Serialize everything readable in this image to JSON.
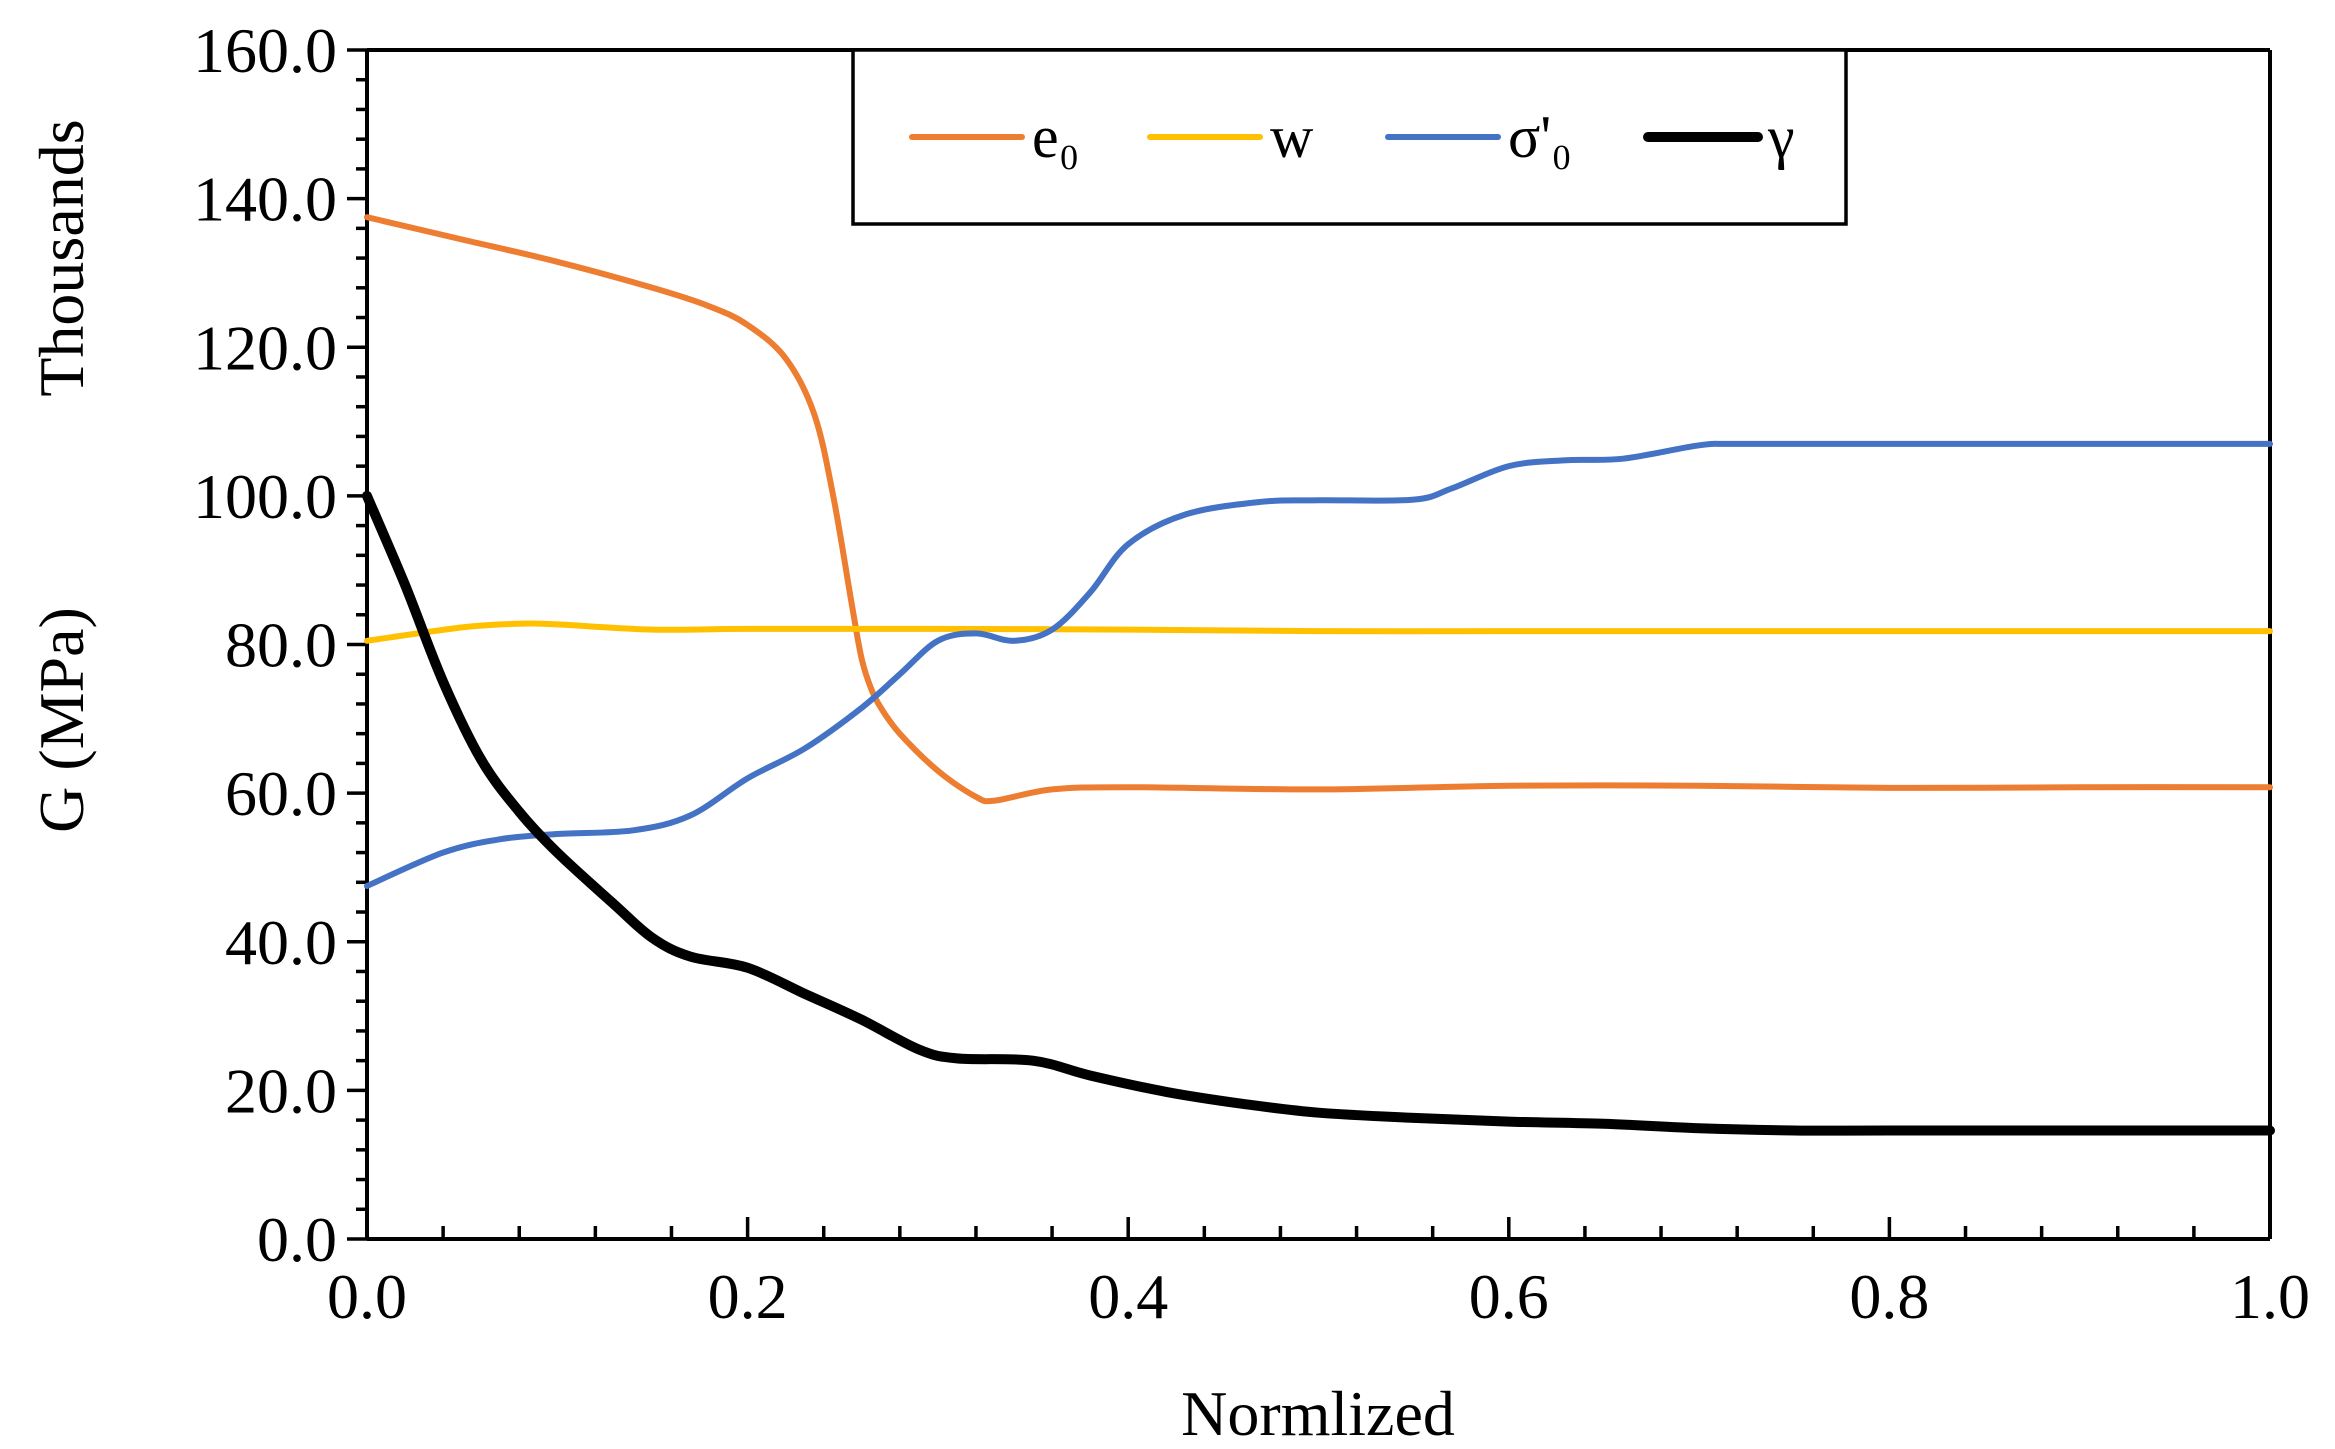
{
  "chart_data": {
    "type": "line",
    "xlabel": "Normlized",
    "ylabel": "G (MPa)",
    "y_multiplier_label": "Thousands",
    "xlim": [
      0.0,
      1.0
    ],
    "ylim": [
      0.0,
      160.0
    ],
    "x_ticks": [
      "0.0",
      "0.2",
      "0.4",
      "0.6",
      "0.8",
      "1.0"
    ],
    "y_ticks": [
      "0.0",
      "20.0",
      "40.0",
      "60.0",
      "80.0",
      "100.0",
      "120.0",
      "140.0",
      "160.0"
    ],
    "x_tick_values": [
      0.0,
      0.2,
      0.4,
      0.6,
      0.8,
      1.0
    ],
    "y_tick_values": [
      0,
      20,
      40,
      60,
      80,
      100,
      120,
      140,
      160
    ],
    "x_minor_step": 0.04,
    "y_minor_step": 4,
    "grid": false,
    "legend_position": "top-center",
    "series": [
      {
        "name": "e₀",
        "color": "#ED7D31",
        "width": "normal",
        "points": [
          [
            0.0,
            137.5
          ],
          [
            0.05,
            134.5
          ],
          [
            0.1,
            131.5
          ],
          [
            0.15,
            128.0
          ],
          [
            0.18,
            125.5
          ],
          [
            0.2,
            123.0
          ],
          [
            0.22,
            118.5
          ],
          [
            0.235,
            111.0
          ],
          [
            0.245,
            100.0
          ],
          [
            0.255,
            85.0
          ],
          [
            0.26,
            78.0
          ],
          [
            0.265,
            74.0
          ],
          [
            0.27,
            71.5
          ],
          [
            0.28,
            68.0
          ],
          [
            0.3,
            63.0
          ],
          [
            0.32,
            59.5
          ],
          [
            0.33,
            59.0
          ],
          [
            0.36,
            60.5
          ],
          [
            0.4,
            60.8
          ],
          [
            0.5,
            60.5
          ],
          [
            0.6,
            61.0
          ],
          [
            0.7,
            61.0
          ],
          [
            0.8,
            60.7
          ],
          [
            0.9,
            60.8
          ],
          [
            1.0,
            60.8
          ]
        ]
      },
      {
        "name": "w",
        "color": "#FFC000",
        "width": "normal",
        "points": [
          [
            0.0,
            80.5
          ],
          [
            0.05,
            82.3
          ],
          [
            0.08,
            82.8
          ],
          [
            0.1,
            82.7
          ],
          [
            0.15,
            82.0
          ],
          [
            0.2,
            82.1
          ],
          [
            0.3,
            82.1
          ],
          [
            0.4,
            82.0
          ],
          [
            0.5,
            81.8
          ],
          [
            0.6,
            81.8
          ],
          [
            0.7,
            81.8
          ],
          [
            0.8,
            81.8
          ],
          [
            0.9,
            81.8
          ],
          [
            1.0,
            81.8
          ]
        ]
      },
      {
        "name": "σ'₀",
        "color": "#4472C4",
        "width": "normal",
        "points": [
          [
            0.0,
            47.5
          ],
          [
            0.04,
            52.0
          ],
          [
            0.07,
            53.8
          ],
          [
            0.1,
            54.5
          ],
          [
            0.14,
            55.0
          ],
          [
            0.17,
            57.0
          ],
          [
            0.2,
            62.0
          ],
          [
            0.23,
            66.0
          ],
          [
            0.26,
            71.5
          ],
          [
            0.28,
            76.0
          ],
          [
            0.3,
            80.5
          ],
          [
            0.32,
            81.5
          ],
          [
            0.34,
            80.5
          ],
          [
            0.36,
            82.0
          ],
          [
            0.38,
            87.0
          ],
          [
            0.4,
            93.5
          ],
          [
            0.43,
            97.5
          ],
          [
            0.47,
            99.2
          ],
          [
            0.5,
            99.4
          ],
          [
            0.55,
            99.5
          ],
          [
            0.57,
            101.0
          ],
          [
            0.6,
            104.0
          ],
          [
            0.63,
            104.8
          ],
          [
            0.66,
            105.0
          ],
          [
            0.7,
            106.8
          ],
          [
            0.72,
            107.0
          ],
          [
            0.8,
            107.0
          ],
          [
            0.9,
            107.0
          ],
          [
            1.0,
            107.0
          ]
        ]
      },
      {
        "name": "γ",
        "color": "#000000",
        "width": "thick",
        "points": [
          [
            0.0,
            100.0
          ],
          [
            0.02,
            88.0
          ],
          [
            0.04,
            75.0
          ],
          [
            0.06,
            64.5
          ],
          [
            0.08,
            57.5
          ],
          [
            0.1,
            52.0
          ],
          [
            0.13,
            45.0
          ],
          [
            0.15,
            40.5
          ],
          [
            0.17,
            38.0
          ],
          [
            0.2,
            36.5
          ],
          [
            0.23,
            33.0
          ],
          [
            0.26,
            29.5
          ],
          [
            0.29,
            25.5
          ],
          [
            0.31,
            24.3
          ],
          [
            0.35,
            24.0
          ],
          [
            0.38,
            22.0
          ],
          [
            0.42,
            19.8
          ],
          [
            0.46,
            18.2
          ],
          [
            0.5,
            17.0
          ],
          [
            0.55,
            16.3
          ],
          [
            0.6,
            15.8
          ],
          [
            0.65,
            15.5
          ],
          [
            0.7,
            14.9
          ],
          [
            0.75,
            14.6
          ],
          [
            0.8,
            14.6
          ],
          [
            0.9,
            14.6
          ],
          [
            1.0,
            14.6
          ]
        ]
      }
    ]
  }
}
